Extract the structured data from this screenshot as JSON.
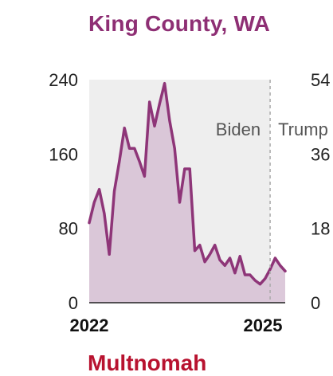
{
  "colors": {
    "line": "#8e3578",
    "area_fill": "#d6bfd3",
    "before_bg": "#eeeeee",
    "title": "#8e2f74",
    "next_title": "#b8122f",
    "divider": "#aaaaaa"
  },
  "chart_data": {
    "type": "area",
    "title": "King County, WA",
    "ylim": [
      0,
      240
    ],
    "yticks": [
      "240",
      "160",
      "80",
      "0"
    ],
    "ytick_values": [
      240,
      160,
      80,
      0
    ],
    "right_ticks": [
      "54",
      "36",
      "18",
      "0"
    ],
    "xtick_labels": [
      "2022",
      "2025"
    ],
    "x_range": [
      "2022-01",
      "2025-04"
    ],
    "divider_date": "2025-01",
    "era_labels": [
      "Biden",
      "Trump"
    ],
    "grid": false,
    "series": [
      {
        "x": [
          "2022-01",
          "2022-02",
          "2022-03",
          "2022-04",
          "2022-05",
          "2022-06",
          "2022-07",
          "2022-08",
          "2022-09",
          "2022-10",
          "2022-11",
          "2022-12",
          "2023-01",
          "2023-02",
          "2023-03",
          "2023-04",
          "2023-05",
          "2023-06",
          "2023-07",
          "2023-08",
          "2023-09",
          "2023-10",
          "2023-11",
          "2023-12",
          "2024-01",
          "2024-02",
          "2024-03",
          "2024-04",
          "2024-05",
          "2024-06",
          "2024-07",
          "2024-08",
          "2024-09",
          "2024-10",
          "2024-11",
          "2024-12",
          "2025-01",
          "2025-02",
          "2025-03",
          "2025-04"
        ],
        "values": [
          86,
          108,
          122,
          96,
          52,
          120,
          152,
          188,
          166,
          166,
          152,
          136,
          216,
          190,
          214,
          236,
          196,
          166,
          108,
          144,
          144,
          56,
          62,
          44,
          52,
          62,
          46,
          40,
          48,
          32,
          50,
          30,
          30,
          24,
          20,
          26,
          36,
          48,
          40,
          34
        ]
      }
    ]
  },
  "next_chart_title": "Multnomah"
}
